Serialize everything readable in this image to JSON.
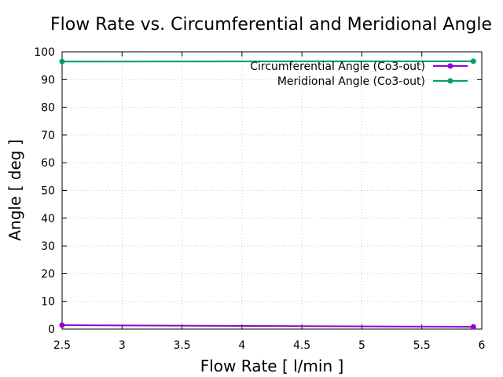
{
  "chart_data": {
    "type": "line",
    "title": "Flow Rate vs. Circumferential and Meridional Angle",
    "xlabel": "Flow Rate [ l/min ]",
    "ylabel": "Angle [ deg ]",
    "xlim": [
      2.5,
      6
    ],
    "ylim": [
      0,
      100
    ],
    "xticks": [
      "2.5",
      "3",
      "3.5",
      "4",
      "4.5",
      "5",
      "5.5",
      "6"
    ],
    "yticks": [
      "0",
      "10",
      "20",
      "30",
      "40",
      "50",
      "60",
      "70",
      "80",
      "90",
      "100"
    ],
    "grid": true,
    "legend_position": "top-right",
    "series": [
      {
        "name": "Circumferential Angle (Co3-out)",
        "color": "#9400d3",
        "x": [
          2.5,
          5.93
        ],
        "y": [
          1.4,
          0.8
        ]
      },
      {
        "name": "Meridional Angle (Co3-out)",
        "color": "#009e73",
        "x": [
          2.5,
          5.93
        ],
        "y": [
          96.5,
          96.6
        ]
      }
    ]
  }
}
